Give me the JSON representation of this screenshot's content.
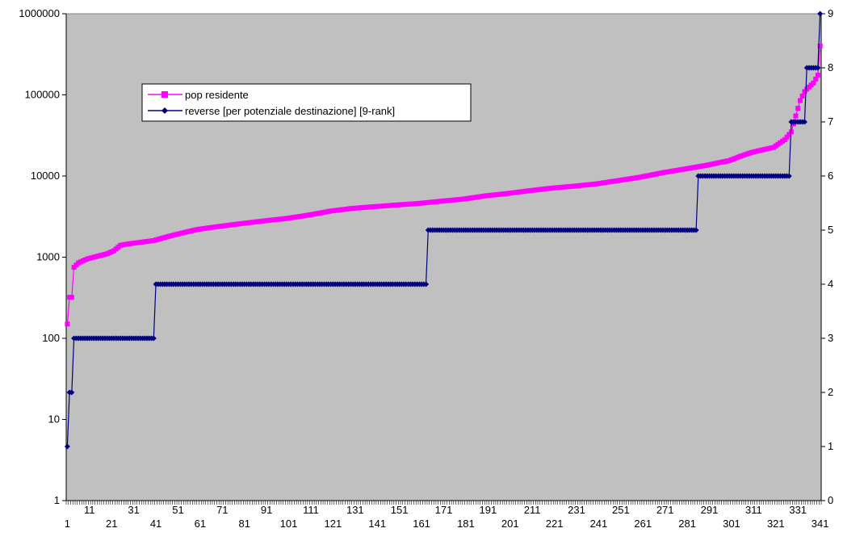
{
  "chart_data": {
    "type": "line",
    "title": "",
    "xlabel": "",
    "ylabel": "",
    "x_count": 341,
    "x_tick_labels": [
      "1",
      "11",
      "21",
      "31",
      "41",
      "51",
      "61",
      "71",
      "81",
      "91",
      "101",
      "111",
      "121",
      "131",
      "141",
      "151",
      "161",
      "171",
      "181",
      "191",
      "201",
      "211",
      "221",
      "231",
      "241",
      "251",
      "261",
      "271",
      "281",
      "291",
      "301",
      "311",
      "321",
      "331",
      "341"
    ],
    "y_left": {
      "scale": "log",
      "range": [
        1,
        1000000
      ],
      "tick_labels": [
        "1",
        "10",
        "100",
        "1000",
        "10000",
        "100000",
        "1000000"
      ]
    },
    "y_right": {
      "scale": "linear",
      "range": [
        0,
        9
      ],
      "tick_labels": [
        "0",
        "1",
        "2",
        "3",
        "4",
        "5",
        "6",
        "7",
        "8",
        "9"
      ]
    },
    "grid": false,
    "plot_background": "#c0c0c0",
    "legend": {
      "placement": "upper-left inside plot",
      "entries": [
        {
          "label": "pop residente",
          "color": "#ff00ff",
          "marker": "square"
        },
        {
          "label": "reverse [per potenziale destinazione] [9-rank]",
          "color": "#000080",
          "marker": "diamond"
        }
      ]
    },
    "series": [
      {
        "name": "pop residente",
        "axis": "left",
        "color": "#ff00ff",
        "marker": "square",
        "x": [
          1,
          2,
          3,
          4,
          5,
          6,
          8,
          10,
          13,
          16,
          19,
          22,
          25,
          28,
          32,
          36,
          40,
          45,
          50,
          55,
          60,
          70,
          80,
          90,
          100,
          110,
          120,
          130,
          140,
          150,
          160,
          170,
          180,
          190,
          200,
          210,
          220,
          230,
          240,
          250,
          260,
          270,
          280,
          290,
          300,
          305,
          310,
          315,
          320,
          325,
          328,
          330,
          332,
          334,
          336,
          338,
          340,
          341
        ],
        "values": [
          150,
          320,
          320,
          750,
          800,
          850,
          900,
          950,
          1000,
          1050,
          1100,
          1200,
          1400,
          1450,
          1500,
          1550,
          1600,
          1750,
          1900,
          2050,
          2200,
          2400,
          2600,
          2800,
          3000,
          3300,
          3700,
          4000,
          4200,
          4400,
          4600,
          4900,
          5200,
          5700,
          6100,
          6600,
          7100,
          7500,
          8000,
          8800,
          9700,
          11000,
          12200,
          13600,
          15500,
          17500,
          19500,
          21000,
          22500,
          28000,
          35000,
          55000,
          85000,
          110000,
          125000,
          140000,
          175000,
          400000
        ]
      },
      {
        "name": "reverse [per potenziale destinazione] [9-rank]",
        "axis": "right",
        "color": "#000080",
        "marker": "diamond",
        "x": [
          1,
          2,
          3,
          4,
          40,
          41,
          163,
          164,
          285,
          286,
          327,
          328,
          334,
          335,
          340,
          341
        ],
        "values": [
          1,
          2,
          2,
          3,
          3,
          4,
          4,
          5,
          5,
          6,
          6,
          7,
          7,
          8,
          8,
          9
        ]
      }
    ]
  }
}
